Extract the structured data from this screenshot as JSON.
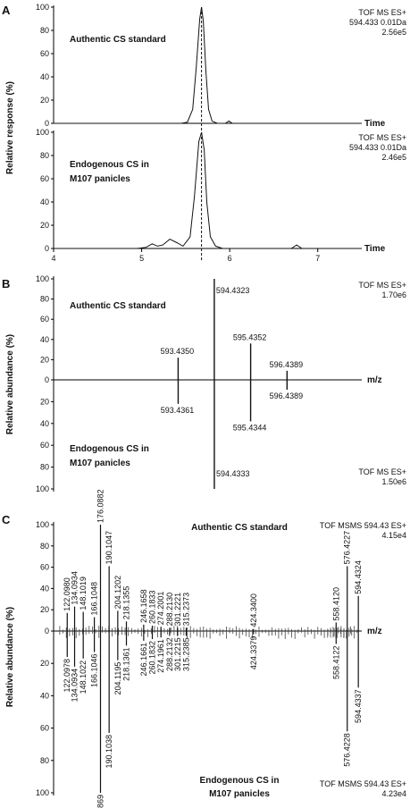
{
  "chart_data": [
    {
      "panel": "A",
      "type": "line",
      "ylabel": "Relative response (%)",
      "xlabel": "Time",
      "x_ticks": [
        4,
        5,
        6,
        7
      ],
      "xlim": [
        4,
        7.5
      ],
      "y_ticks": [
        0,
        20,
        40,
        60,
        80,
        100
      ],
      "ylim": [
        0,
        100
      ],
      "dashed_line_x": 5.68,
      "traces": [
        {
          "label": "Authentic CS standard",
          "scan": "TOF MS ES+",
          "mass": "594.433 0.01Da",
          "intensity": "2.56e5",
          "points": [
            [
              4.0,
              0
            ],
            [
              5.0,
              0
            ],
            [
              5.45,
              0
            ],
            [
              5.52,
              1
            ],
            [
              5.58,
              12
            ],
            [
              5.62,
              48
            ],
            [
              5.66,
              90
            ],
            [
              5.68,
              100
            ],
            [
              5.7,
              88
            ],
            [
              5.73,
              45
            ],
            [
              5.76,
              12
            ],
            [
              5.8,
              2
            ],
            [
              5.86,
              0
            ],
            [
              5.95,
              0
            ],
            [
              5.99,
              2
            ],
            [
              6.03,
              0
            ],
            [
              7.5,
              0
            ]
          ]
        },
        {
          "label": "Endogenous CS in\nM107 panicles",
          "scan": "TOF MS ES+",
          "mass": "594.433 0.01Da",
          "intensity": "2.46e5",
          "points": [
            [
              4.0,
              0
            ],
            [
              4.95,
              0
            ],
            [
              5.05,
              1
            ],
            [
              5.12,
              4
            ],
            [
              5.18,
              2
            ],
            [
              5.24,
              3
            ],
            [
              5.32,
              8
            ],
            [
              5.4,
              5
            ],
            [
              5.47,
              2
            ],
            [
              5.55,
              10
            ],
            [
              5.6,
              45
            ],
            [
              5.65,
              92
            ],
            [
              5.68,
              100
            ],
            [
              5.71,
              85
            ],
            [
              5.74,
              40
            ],
            [
              5.78,
              10
            ],
            [
              5.84,
              2
            ],
            [
              5.92,
              0
            ],
            [
              6.7,
              0
            ],
            [
              6.76,
              3
            ],
            [
              6.82,
              0
            ],
            [
              7.5,
              0
            ]
          ]
        }
      ]
    },
    {
      "panel": "B",
      "type": "bar",
      "ylabel": "Relative abundance (%)",
      "xlabel": "m/z",
      "xlim": [
        590.0,
        598.5
      ],
      "y_ticks": [
        0,
        20,
        40,
        60,
        80,
        100
      ],
      "ylim": [
        0,
        100
      ],
      "top": {
        "label": "Authentic CS standard",
        "scan": "TOF MS ES+",
        "intensity": "1.70e6",
        "peaks": [
          {
            "mz": 593.435,
            "label": "593.4350",
            "value": 22
          },
          {
            "mz": 594.4323,
            "label": "594.4323",
            "value": 100
          },
          {
            "mz": 595.4352,
            "label": "595.4352",
            "value": 36
          },
          {
            "mz": 596.4389,
            "label": "596.4389",
            "value": 9
          }
        ]
      },
      "bottom": {
        "label": "Endogenous CS in\nM107 panicles",
        "scan": "TOF MS ES+",
        "intensity": "1.50e6",
        "peaks": [
          {
            "mz": 593.4361,
            "label": "593.4361",
            "value": 22
          },
          {
            "mz": 594.4333,
            "label": "594.4333",
            "value": 100
          },
          {
            "mz": 595.4344,
            "label": "595.4344",
            "value": 38
          },
          {
            "mz": 596.4389,
            "label": "596.4389",
            "value": 9
          }
        ]
      }
    },
    {
      "panel": "C",
      "type": "bar",
      "ylabel": "Relative abundance (%)",
      "xlabel": "m/z",
      "xlim": [
        100,
        600
      ],
      "y_ticks": [
        0,
        20,
        40,
        60,
        80,
        100
      ],
      "ylim": [
        0,
        100
      ],
      "top": {
        "label": "Authentic CS standard",
        "scan": "TOF MSMS 594.43 ES+",
        "intensity": "4.15e4",
        "peaks": [
          {
            "mz": 122.098,
            "label": "122.0980",
            "value": 17
          },
          {
            "mz": 134.0934,
            "label": "134.0934",
            "value": 23
          },
          {
            "mz": 148.1019,
            "label": "148.1019",
            "value": 18
          },
          {
            "mz": 166.1048,
            "label": "166.1048",
            "value": 13
          },
          {
            "mz": 176.0882,
            "label": "176.0882",
            "value": 100
          },
          {
            "mz": 190.1047,
            "label": "190.1047",
            "value": 61
          },
          {
            "mz": 204.1202,
            "label": "204.1202",
            "value": 19
          },
          {
            "mz": 218.1355,
            "label": "218.1355",
            "value": 9
          },
          {
            "mz": 246.1658,
            "label": "246.1658",
            "value": 6
          },
          {
            "mz": 260.1833,
            "label": "260.1833",
            "value": 5
          },
          {
            "mz": 274.2001,
            "label": "274.2001",
            "value": 4
          },
          {
            "mz": 288.213,
            "label": "288.2130",
            "value": 3
          },
          {
            "mz": 301.2221,
            "label": "301.2221",
            "value": 3
          },
          {
            "mz": 315.2373,
            "label": "315.2373",
            "value": 3
          },
          {
            "mz": 424.34,
            "label": "424.3400",
            "value": 2
          },
          {
            "mz": 558.412,
            "label": "558.4120",
            "value": 8
          },
          {
            "mz": 576.4227,
            "label": "576.4227",
            "value": 61
          },
          {
            "mz": 594.4324,
            "label": "594.4324",
            "value": 33
          }
        ]
      },
      "bottom": {
        "label": "Endogenous CS in\nM107 panicles",
        "scan": "TOF MSMS 594.43 ES+",
        "intensity": "4.23e4",
        "peaks": [
          {
            "mz": 122.0978,
            "label": "122.0978",
            "value": 16
          },
          {
            "mz": 134.0934,
            "label": "134.0934",
            "value": 22
          },
          {
            "mz": 148.1022,
            "label": "148.1022",
            "value": 17
          },
          {
            "mz": 166.1046,
            "label": "166.1046",
            "value": 13
          },
          {
            "mz": 176.0869,
            "label": "176.0869",
            "value": 100
          },
          {
            "mz": 190.1038,
            "label": "190.1038",
            "value": 63
          },
          {
            "mz": 204.1195,
            "label": "204.1195",
            "value": 18
          },
          {
            "mz": 218.1361,
            "label": "218.1361",
            "value": 9
          },
          {
            "mz": 246.1661,
            "label": "246.1661",
            "value": 6
          },
          {
            "mz": 260.1832,
            "label": "260.1832",
            "value": 5
          },
          {
            "mz": 274.1961,
            "label": "274.1961",
            "value": 4
          },
          {
            "mz": 288.2132,
            "label": "288.2132",
            "value": 3
          },
          {
            "mz": 301.2215,
            "label": "301.2215",
            "value": 3
          },
          {
            "mz": 315.2385,
            "label": "315.2385",
            "value": 3
          },
          {
            "mz": 424.3379,
            "label": "424.3379",
            "value": 2
          },
          {
            "mz": 558.4122,
            "label": "558.4122",
            "value": 8
          },
          {
            "mz": 576.4228,
            "label": "576.4228",
            "value": 62
          },
          {
            "mz": 594.4337,
            "label": "594.4337",
            "value": 35
          }
        ]
      }
    }
  ]
}
